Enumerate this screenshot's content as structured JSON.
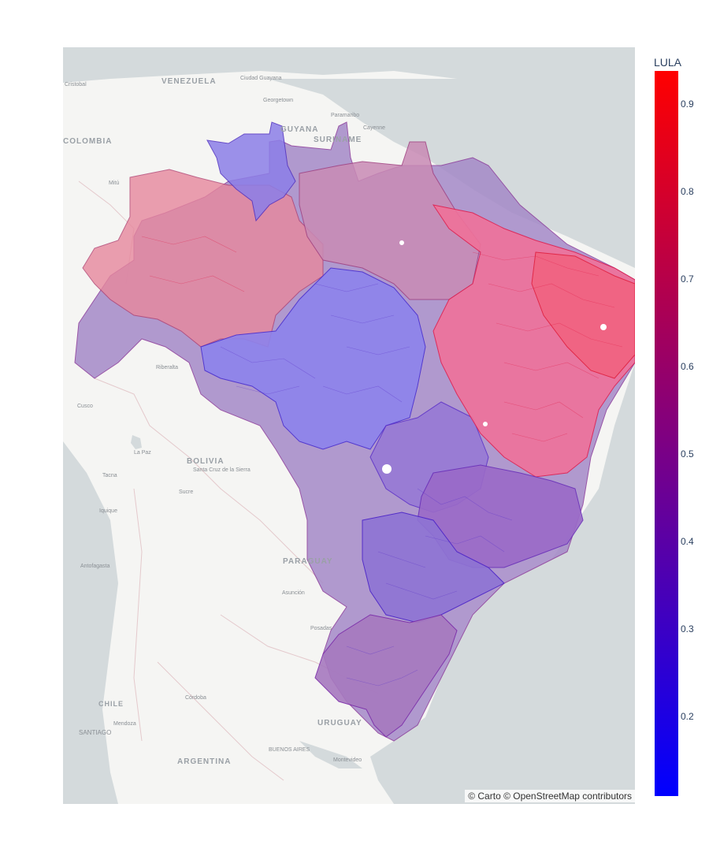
{
  "map": {
    "attribution": "© Carto © OpenStreetMap contributors",
    "basemap_colors": {
      "land": "#f5f5f3",
      "ocean": "#d4dadc",
      "labels": "#9aa0a6"
    },
    "country_labels": [
      "VENEZUELA",
      "COLOMBIA",
      "GUYANA",
      "SURINAME",
      "BOLIVIA",
      "PARAGUAY",
      "URUGUAY",
      "ARGENTINA",
      "CHILE"
    ],
    "city_labels": [
      "Cristobal",
      "Ciudad Guayana",
      "Georgetown",
      "Paramaribo",
      "Cayenne",
      "Mitú",
      "Riberalta",
      "Cusco",
      "La Paz",
      "Tacna",
      "Santa Cruz de la Sierra",
      "Sucre",
      "Iquique",
      "Antofagasta",
      "Asunción",
      "Posadas",
      "Córdoba",
      "Mendoza",
      "SANTIAGO",
      "BUENOS AIRES",
      "Montevideo"
    ]
  },
  "colorbar": {
    "title": "LULA",
    "ticks": [
      "0.9",
      "0.8",
      "0.7",
      "0.6",
      "0.5",
      "0.4",
      "0.3",
      "0.2"
    ],
    "colors": {
      "low": "#0000ff",
      "mid": "#800080",
      "high": "#ff0000"
    }
  }
}
